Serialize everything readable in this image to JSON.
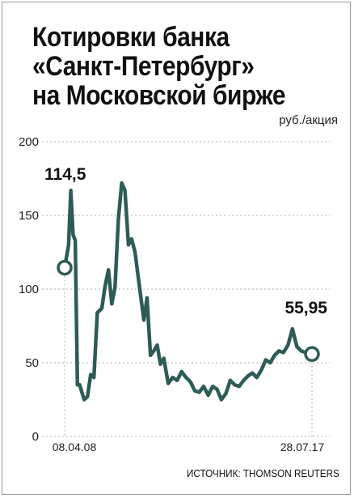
{
  "title_lines": [
    "Котировки банка",
    "«Санкт-Петербург»",
    "на Московской бирже"
  ],
  "unit": "руб./акция",
  "source": "ИСТОЧНИК: THOMSON REUTERS",
  "colors": {
    "line": "#2d5c57",
    "grid": "#b0b0b0",
    "text": "#111111"
  },
  "chart_data": {
    "type": "line",
    "title": "Котировки банка «Санкт-Петербург» на Московской бирже",
    "ylabel": "руб./акция",
    "ylim": [
      0,
      200
    ],
    "yticks": [
      0,
      50,
      100,
      150,
      200
    ],
    "x_tick_labels": [
      "08.04.08",
      "28.07.17"
    ],
    "grid": "horizontal dotted",
    "annotations": [
      {
        "label": "114,5",
        "x": "08.04.08",
        "y": 114.5
      },
      {
        "label": "55,95",
        "x": "28.07.17",
        "y": 55.95
      }
    ],
    "x_range": [
      "08.04.08",
      "28.07.17"
    ],
    "series": [
      {
        "x": [
          "2008-04-08",
          "2008-06-01",
          "2008-07-01",
          "2008-08-01",
          "2008-09-01",
          "2008-10-01",
          "2008-11-01",
          "2008-12-01",
          "2009-01-01",
          "2009-02-15",
          "2009-04-01",
          "2009-05-15",
          "2009-07-01",
          "2009-09-01",
          "2009-10-15",
          "2009-12-01",
          "2010-01-15",
          "2010-03-01",
          "2010-04-15",
          "2010-06-01",
          "2010-07-15",
          "2010-09-01",
          "2010-10-15",
          "2010-12-01",
          "2011-02-01",
          "2011-04-01",
          "2011-05-15",
          "2011-07-01",
          "2011-08-15",
          "2011-10-01",
          "2011-11-15",
          "2012-01-01",
          "2012-03-01",
          "2012-05-01",
          "2012-07-01",
          "2012-09-01",
          "2012-11-01",
          "2013-01-01",
          "2013-03-01",
          "2013-05-01",
          "2013-07-01",
          "2013-09-01",
          "2013-11-01",
          "2014-01-01",
          "2014-03-01",
          "2014-05-01",
          "2014-07-01",
          "2014-09-01",
          "2014-11-01",
          "2015-01-01",
          "2015-03-01",
          "2015-05-01",
          "2015-07-01",
          "2015-09-01",
          "2015-11-01",
          "2016-01-01",
          "2016-03-01",
          "2016-05-01",
          "2016-07-01",
          "2016-09-01",
          "2016-11-01",
          "2017-01-01",
          "2017-03-01",
          "2017-05-01",
          "2017-07-28"
        ],
        "y": [
          114.5,
          130,
          167,
          137,
          133,
          35,
          35,
          30,
          25,
          27,
          42,
          40,
          84,
          87,
          102,
          113,
          90,
          101,
          147,
          172,
          167,
          130,
          134,
          125,
          101,
          79,
          94,
          55,
          58,
          62,
          49,
          53,
          36,
          40,
          38,
          44,
          40,
          37,
          31,
          30,
          34,
          28,
          34,
          32,
          25,
          29,
          38,
          35,
          34,
          38,
          41,
          43,
          40,
          45,
          52,
          50,
          55,
          58,
          57,
          62,
          73,
          61,
          58,
          57,
          55.95
        ]
      }
    ]
  }
}
